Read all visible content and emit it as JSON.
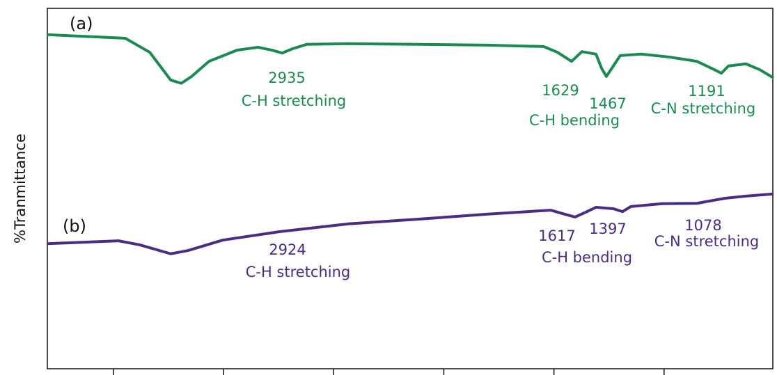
{
  "chart_data": {
    "type": "line",
    "ylabel": "%Tranmittance",
    "xlim": [
      3800,
      500
    ],
    "xticks": [
      3500,
      3000,
      2500,
      2000,
      1500,
      1000
    ],
    "ylim": [
      0,
      100
    ],
    "series": [
      {
        "name": "(a)",
        "color": "#1b8a50",
        "x": [
          3800,
          3446,
          3335,
          3240,
          3192,
          3145,
          3066,
          2939,
          2844,
          2781,
          2734,
          2686,
          2623,
          2433,
          2116,
          1800,
          1547,
          1484,
          1420,
          1373,
          1309,
          1284,
          1262,
          1237,
          1199,
          1104,
          977,
          851,
          772,
          740,
          708,
          629,
          566,
          503
        ],
        "values": [
          92.7,
          91.7,
          87.8,
          80.1,
          79.2,
          81.1,
          85.3,
          88.4,
          89.2,
          88.4,
          87.6,
          88.8,
          90.0,
          90.2,
          90.0,
          89.8,
          89.4,
          87.8,
          85.3,
          88.0,
          87.3,
          83.4,
          81.1,
          83.4,
          86.9,
          87.3,
          86.5,
          85.3,
          83.0,
          82.0,
          84.0,
          84.6,
          83.0,
          80.7
        ],
        "annotations": [
          "2935",
          "C-H stretching",
          "1629",
          "1467",
          "C-H bending",
          "1191",
          "C-N stretching"
        ]
      },
      {
        "name": "(b)",
        "color": "#4b2c83",
        "x": [
          3800,
          3477,
          3382,
          3240,
          3161,
          3003,
          2749,
          2433,
          2116,
          1800,
          1515,
          1452,
          1404,
          1357,
          1309,
          1230,
          1189,
          1151,
          1009,
          851,
          724,
          629,
          503
        ],
        "values": [
          34.7,
          35.5,
          34.4,
          31.9,
          32.8,
          35.7,
          38.0,
          40.2,
          41.5,
          42.9,
          44.0,
          42.9,
          42.1,
          43.4,
          44.8,
          44.4,
          43.6,
          45.0,
          45.8,
          45.9,
          47.3,
          47.9,
          48.5
        ],
        "annotations": [
          "2924",
          "C-H stretching",
          "1617",
          "1397",
          "1078",
          "C-H bending",
          "C-N stretching"
        ]
      }
    ]
  }
}
